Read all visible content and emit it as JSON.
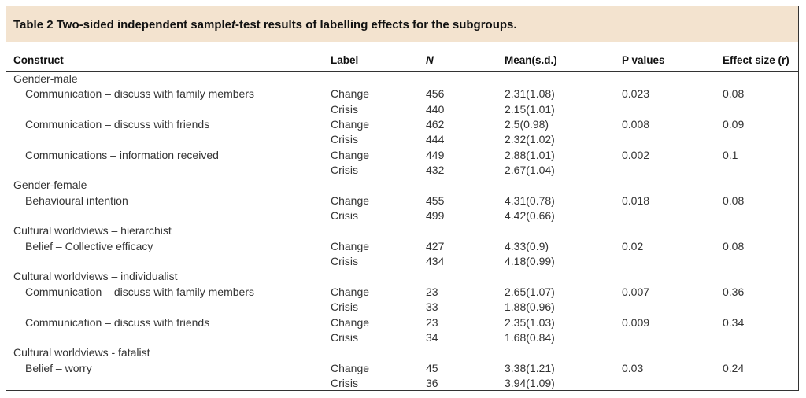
{
  "caption": {
    "prefix": "Table 2 Two-sided independent sample ",
    "italic": "t",
    "suffix": "-test results of labelling effects for the subgroups."
  },
  "columns": {
    "construct": "Construct",
    "label": "Label",
    "n": "N",
    "mean": "Mean(s.d.)",
    "p": "P values",
    "effect": "Effect size (r)"
  },
  "rows": [
    {
      "kind": "group",
      "construct": "Gender-male"
    },
    {
      "kind": "data",
      "construct": "Communication – discuss with family members",
      "label": "Change",
      "n": "456",
      "mean": "2.31(1.08)",
      "p": "0.023",
      "effect": "0.08"
    },
    {
      "kind": "data",
      "construct": "",
      "label": "Crisis",
      "n": "440",
      "mean": "2.15(1.01)",
      "p": "",
      "effect": ""
    },
    {
      "kind": "data",
      "construct": "Communication – discuss with friends",
      "label": "Change",
      "n": "462",
      "mean": "2.5(0.98)",
      "p": "0.008",
      "effect": "0.09"
    },
    {
      "kind": "data",
      "construct": "",
      "label": "Crisis",
      "n": "444",
      "mean": "2.32(1.02)",
      "p": "",
      "effect": ""
    },
    {
      "kind": "data",
      "construct": "Communications – information received",
      "label": "Change",
      "n": "449",
      "mean": "2.88(1.01)",
      "p": "0.002",
      "effect": "0.1"
    },
    {
      "kind": "data",
      "construct": "",
      "label": "Crisis",
      "n": "432",
      "mean": "2.67(1.04)",
      "p": "",
      "effect": ""
    },
    {
      "kind": "group",
      "construct": "Gender-female"
    },
    {
      "kind": "data",
      "construct": "Behavioural intention",
      "label": "Change",
      "n": "455",
      "mean": "4.31(0.78)",
      "p": "0.018",
      "effect": "0.08"
    },
    {
      "kind": "data",
      "construct": "",
      "label": "Crisis",
      "n": "499",
      "mean": "4.42(0.66)",
      "p": "",
      "effect": ""
    },
    {
      "kind": "group",
      "construct": "Cultural worldviews – hierarchist"
    },
    {
      "kind": "data",
      "construct": "Belief – Collective efficacy",
      "label": "Change",
      "n": "427",
      "mean": "4.33(0.9)",
      "p": "0.02",
      "effect": "0.08"
    },
    {
      "kind": "data",
      "construct": "",
      "label": "Crisis",
      "n": "434",
      "mean": "4.18(0.99)",
      "p": "",
      "effect": ""
    },
    {
      "kind": "group",
      "construct": "Cultural worldviews – individualist"
    },
    {
      "kind": "data",
      "construct": "Communication – discuss with family members",
      "label": "Change",
      "n": "23",
      "mean": "2.65(1.07)",
      "p": "0.007",
      "effect": "0.36"
    },
    {
      "kind": "data",
      "construct": "",
      "label": "Crisis",
      "n": "33",
      "mean": "1.88(0.96)",
      "p": "",
      "effect": ""
    },
    {
      "kind": "data",
      "construct": "Communication – discuss with friends",
      "label": "Change",
      "n": "23",
      "mean": "2.35(1.03)",
      "p": "0.009",
      "effect": "0.34"
    },
    {
      "kind": "data",
      "construct": "",
      "label": "Crisis",
      "n": "34",
      "mean": "1.68(0.84)",
      "p": "",
      "effect": ""
    },
    {
      "kind": "group",
      "construct": "Cultural worldviews - fatalist"
    },
    {
      "kind": "data",
      "construct": "Belief – worry",
      "label": "Change",
      "n": "45",
      "mean": "3.38(1.21)",
      "p": "0.03",
      "effect": "0.24"
    },
    {
      "kind": "data",
      "construct": "",
      "label": "Crisis",
      "n": "36",
      "mean": "3.94(1.09)",
      "p": "",
      "effect": ""
    }
  ]
}
